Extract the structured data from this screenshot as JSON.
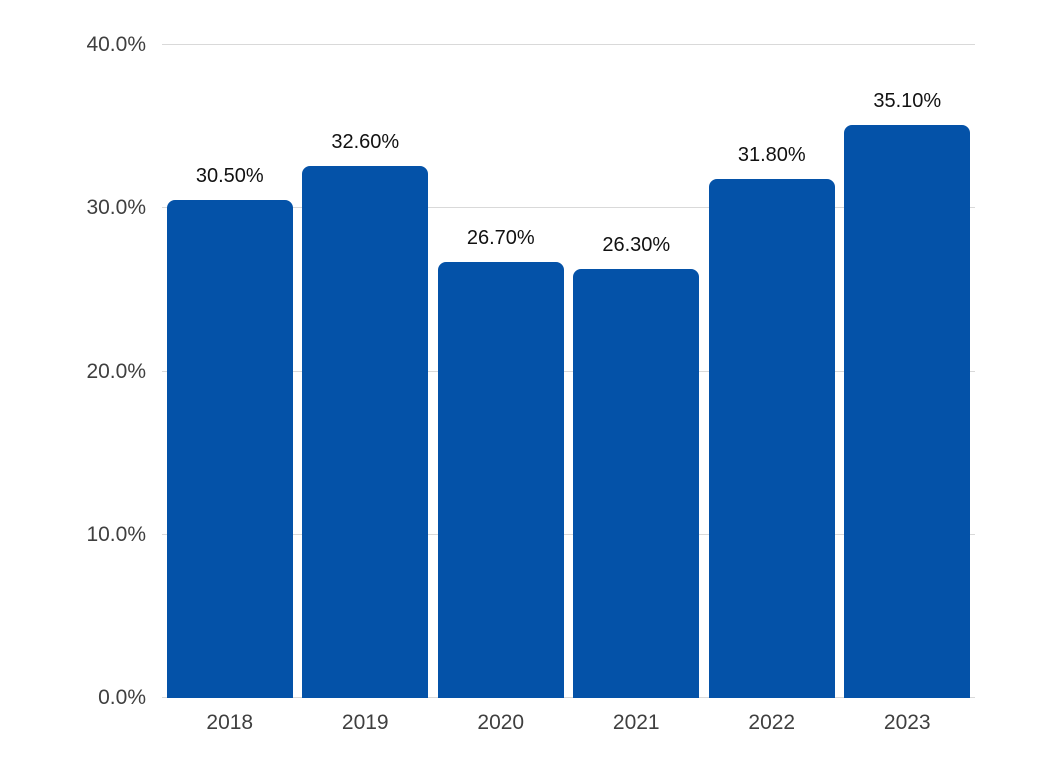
{
  "chart_data": {
    "type": "bar",
    "title": "",
    "xlabel": "",
    "ylabel": "",
    "categories": [
      "2018",
      "2019",
      "2020",
      "2021",
      "2022",
      "2023"
    ],
    "values": [
      30.5,
      32.6,
      26.7,
      26.3,
      31.8,
      35.1
    ],
    "value_labels": [
      "30.50%",
      "32.60%",
      "26.70%",
      "26.30%",
      "31.80%",
      "35.10%"
    ],
    "ylim": [
      0,
      40
    ],
    "y_ticks": [
      {
        "value": 40,
        "label": "40.0%"
      },
      {
        "value": 30,
        "label": "30.0%"
      },
      {
        "value": 20,
        "label": "20.0%"
      },
      {
        "value": 10,
        "label": "10.0%"
      },
      {
        "value": 0,
        "label": "0.0%"
      }
    ],
    "grid": true,
    "legend": "none",
    "colors": {
      "bar": "#0452A8",
      "gridline": "#D9D9D9",
      "axis_tick_label": "#3F3F3F",
      "value_label": "#111111",
      "background": "#FFFFFF"
    }
  }
}
